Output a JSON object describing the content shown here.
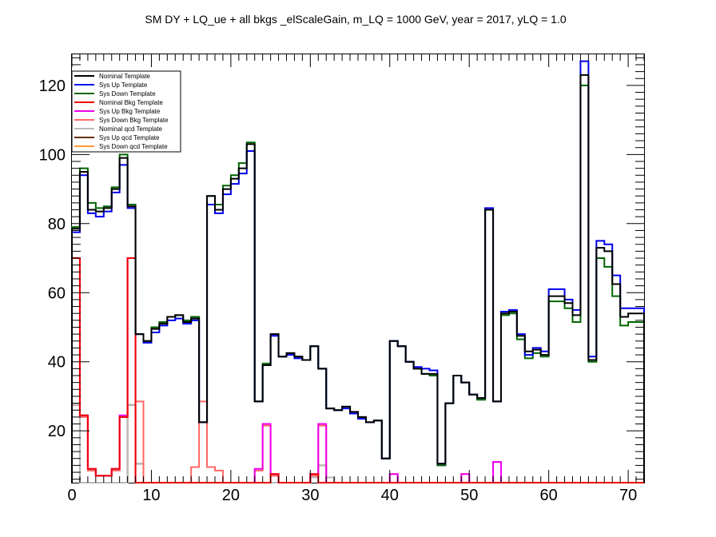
{
  "chart_data": {
    "type": "line",
    "title": "SM DY + LQ_ue + all bkgs _elScaleGain, m_LQ = 1000 GeV, year = 2017, yLQ = 1.0",
    "xlabel": "",
    "ylabel": "",
    "xlim": [
      0,
      72
    ],
    "ylim": [
      5,
      129
    ],
    "x_ticks": [
      0,
      10,
      20,
      30,
      40,
      50,
      60,
      70
    ],
    "y_ticks": [
      20,
      40,
      60,
      80,
      100,
      120
    ],
    "grid": false,
    "legend_position": "top-left",
    "series": [
      {
        "name": "Nominal Template",
        "color": "#000000",
        "values": [
          78.5,
          95,
          84,
          83.5,
          84.5,
          90,
          99,
          85,
          48,
          46,
          49.5,
          51,
          53,
          53.5,
          51.5,
          52.5,
          22.5,
          88,
          84,
          90,
          93,
          96,
          103,
          28.5,
          39,
          48,
          41.5,
          42.5,
          41.5,
          40.5,
          44.5,
          38,
          26.5,
          26,
          27,
          25.5,
          24,
          22.5,
          23,
          12,
          46,
          44.5,
          40,
          38,
          36.5,
          36.5,
          10.5,
          28,
          36,
          34,
          30.5,
          29.5,
          84,
          28.5,
          54,
          54.5,
          47.5,
          43,
          43.5,
          42,
          59,
          59,
          57,
          53.5,
          123,
          40.5,
          73,
          72,
          62.5,
          53,
          54,
          54
        ]
      },
      {
        "name": "Sys Up Template",
        "color": "#0000ee",
        "values": [
          77.5,
          94,
          83,
          82,
          83.5,
          89,
          97,
          84.5,
          48,
          45.5,
          48.5,
          50.5,
          52,
          52.5,
          51,
          52,
          22.5,
          85.5,
          83,
          88.5,
          91.5,
          94.5,
          101,
          28.5,
          39,
          47.5,
          41.5,
          42,
          41,
          40.5,
          44.5,
          38,
          26.5,
          26,
          26.5,
          25,
          23.5,
          22.5,
          23,
          12,
          46,
          44.5,
          40,
          38.5,
          38,
          37.5,
          10.5,
          28,
          36,
          34,
          30.5,
          29.5,
          84.5,
          28.5,
          54.5,
          55,
          48,
          42,
          44,
          43,
          61,
          61,
          58,
          55,
          127,
          41.5,
          75,
          74,
          65,
          55.5,
          55.5,
          55.5
        ]
      },
      {
        "name": "Sys Down Template",
        "color": "#006600",
        "values": [
          79,
          96,
          86,
          84.5,
          85,
          90.5,
          100,
          85.5,
          48,
          46,
          50,
          51.5,
          53,
          53.5,
          52,
          53,
          22.5,
          88,
          85.5,
          91,
          94,
          97.5,
          103.5,
          28.5,
          39.5,
          48,
          41.5,
          42.5,
          41.5,
          40.5,
          44.5,
          38,
          26.5,
          26,
          27,
          25,
          24,
          22.5,
          23,
          12,
          46,
          44.5,
          40,
          38,
          36.5,
          36,
          10,
          28,
          36,
          34,
          30.5,
          29,
          84,
          28.5,
          53.5,
          54,
          46.5,
          41,
          42.5,
          41.5,
          57.5,
          57.5,
          55.5,
          51.5,
          120,
          40,
          70,
          67.5,
          59,
          50.5,
          51.5,
          51.5
        ]
      },
      {
        "name": "Nominal Bkg Template",
        "color": "#ee0000",
        "values": [
          70,
          24.5,
          9,
          7,
          7,
          9,
          24,
          70,
          0,
          0,
          0,
          0,
          0,
          0,
          0,
          0,
          0,
          0,
          0,
          0,
          0,
          0,
          0,
          0,
          0,
          7.5,
          0,
          0,
          0,
          0,
          7.5,
          0,
          0,
          0,
          0,
          0,
          0,
          0,
          0,
          0,
          0,
          0,
          0,
          0,
          0,
          0,
          0,
          0,
          0,
          0,
          0,
          0,
          0,
          0,
          0,
          0,
          0,
          0,
          0,
          0,
          0,
          0,
          0,
          0,
          0,
          0,
          0,
          0,
          0,
          0,
          0,
          0
        ]
      },
      {
        "name": "Sys Up Bkg Template",
        "color": "#ee00ee",
        "values": [
          70,
          24.5,
          9,
          7,
          7,
          9,
          24.5,
          70,
          0,
          0,
          0,
          0,
          0,
          0,
          0,
          0,
          0,
          0,
          0,
          0,
          0,
          0,
          0,
          9,
          22,
          7.5,
          0,
          0,
          0,
          0,
          7.5,
          22,
          0,
          0,
          0,
          0,
          0,
          0,
          0,
          0,
          7.5,
          0,
          0,
          0,
          0,
          0,
          0,
          0,
          0,
          7.5,
          0,
          0,
          0,
          11,
          0,
          0,
          0,
          0,
          0,
          0,
          0,
          0,
          0,
          0,
          0,
          0,
          0,
          0,
          0,
          0,
          0,
          0
        ]
      },
      {
        "name": "Sys Down Bkg Template",
        "color": "#ff6666",
        "values": [
          70,
          24,
          8.5,
          7,
          7,
          8.5,
          24,
          70,
          28.5,
          0,
          0,
          0,
          0,
          0,
          0,
          9.5,
          28.5,
          9.5,
          8.5,
          0,
          0,
          0,
          0,
          8.5,
          21.5,
          7,
          0,
          0,
          0,
          0,
          7,
          21.5,
          0,
          0,
          0,
          0,
          0,
          0,
          0,
          0,
          7.5,
          0,
          0,
          0,
          0,
          0,
          0,
          0,
          0,
          7.5,
          0,
          0,
          0,
          11,
          0,
          0,
          0,
          0,
          0,
          0,
          0,
          0,
          0,
          0,
          0,
          0,
          0,
          0,
          0,
          0,
          0,
          0
        ]
      },
      {
        "name": "Nominal qcd Template",
        "color": "#bbbbbb",
        "values": [
          27.5,
          0,
          0,
          0,
          0,
          0,
          0,
          27.5,
          10.5,
          0,
          0,
          0,
          0,
          0,
          0,
          0,
          0,
          0,
          0,
          0,
          0,
          0,
          0,
          0,
          0,
          0,
          0,
          0,
          0,
          0,
          6.5,
          10,
          6.5,
          0,
          0,
          0,
          0,
          0,
          0,
          0,
          0,
          0,
          0,
          0,
          0,
          0,
          0,
          0,
          0,
          0,
          0,
          0,
          0,
          0,
          0,
          0,
          0,
          0,
          0,
          0,
          0,
          0,
          0,
          0,
          0,
          0,
          0,
          0,
          0,
          0,
          0,
          0
        ]
      },
      {
        "name": "Sys Up qcd Template",
        "color": "#663300",
        "values": [
          27.5,
          0,
          0,
          0,
          0,
          0,
          0,
          27.5,
          10.5,
          0,
          0,
          0,
          0,
          0,
          0,
          0,
          0,
          0,
          0,
          0,
          0,
          0,
          0,
          0,
          0,
          0,
          0,
          0,
          0,
          0,
          6.5,
          10,
          6.5,
          0,
          0,
          0,
          0,
          0,
          0,
          0,
          0,
          0,
          0,
          0,
          0,
          0,
          0,
          0,
          0,
          0,
          0,
          0,
          0,
          0,
          0,
          0,
          0,
          0,
          0,
          0,
          0,
          0,
          0,
          0,
          0,
          0,
          0,
          0,
          0,
          0,
          0,
          0
        ]
      },
      {
        "name": "Sys Down qcd Template",
        "color": "#ff9933",
        "values": [
          27.5,
          0,
          0,
          0,
          0,
          0,
          0,
          27.5,
          10.5,
          0,
          0,
          0,
          0,
          0,
          0,
          0,
          0,
          0,
          0,
          0,
          0,
          0,
          0,
          0,
          0,
          0,
          0,
          0,
          0,
          0,
          6.5,
          10,
          6.5,
          0,
          0,
          0,
          0,
          0,
          0,
          0,
          0,
          0,
          0,
          0,
          0,
          0,
          0,
          0,
          0,
          0,
          0,
          0,
          0,
          0,
          0,
          0,
          0,
          0,
          0,
          0,
          0,
          0,
          0,
          0,
          0,
          0,
          0,
          0,
          0,
          0,
          0,
          0
        ]
      }
    ]
  }
}
